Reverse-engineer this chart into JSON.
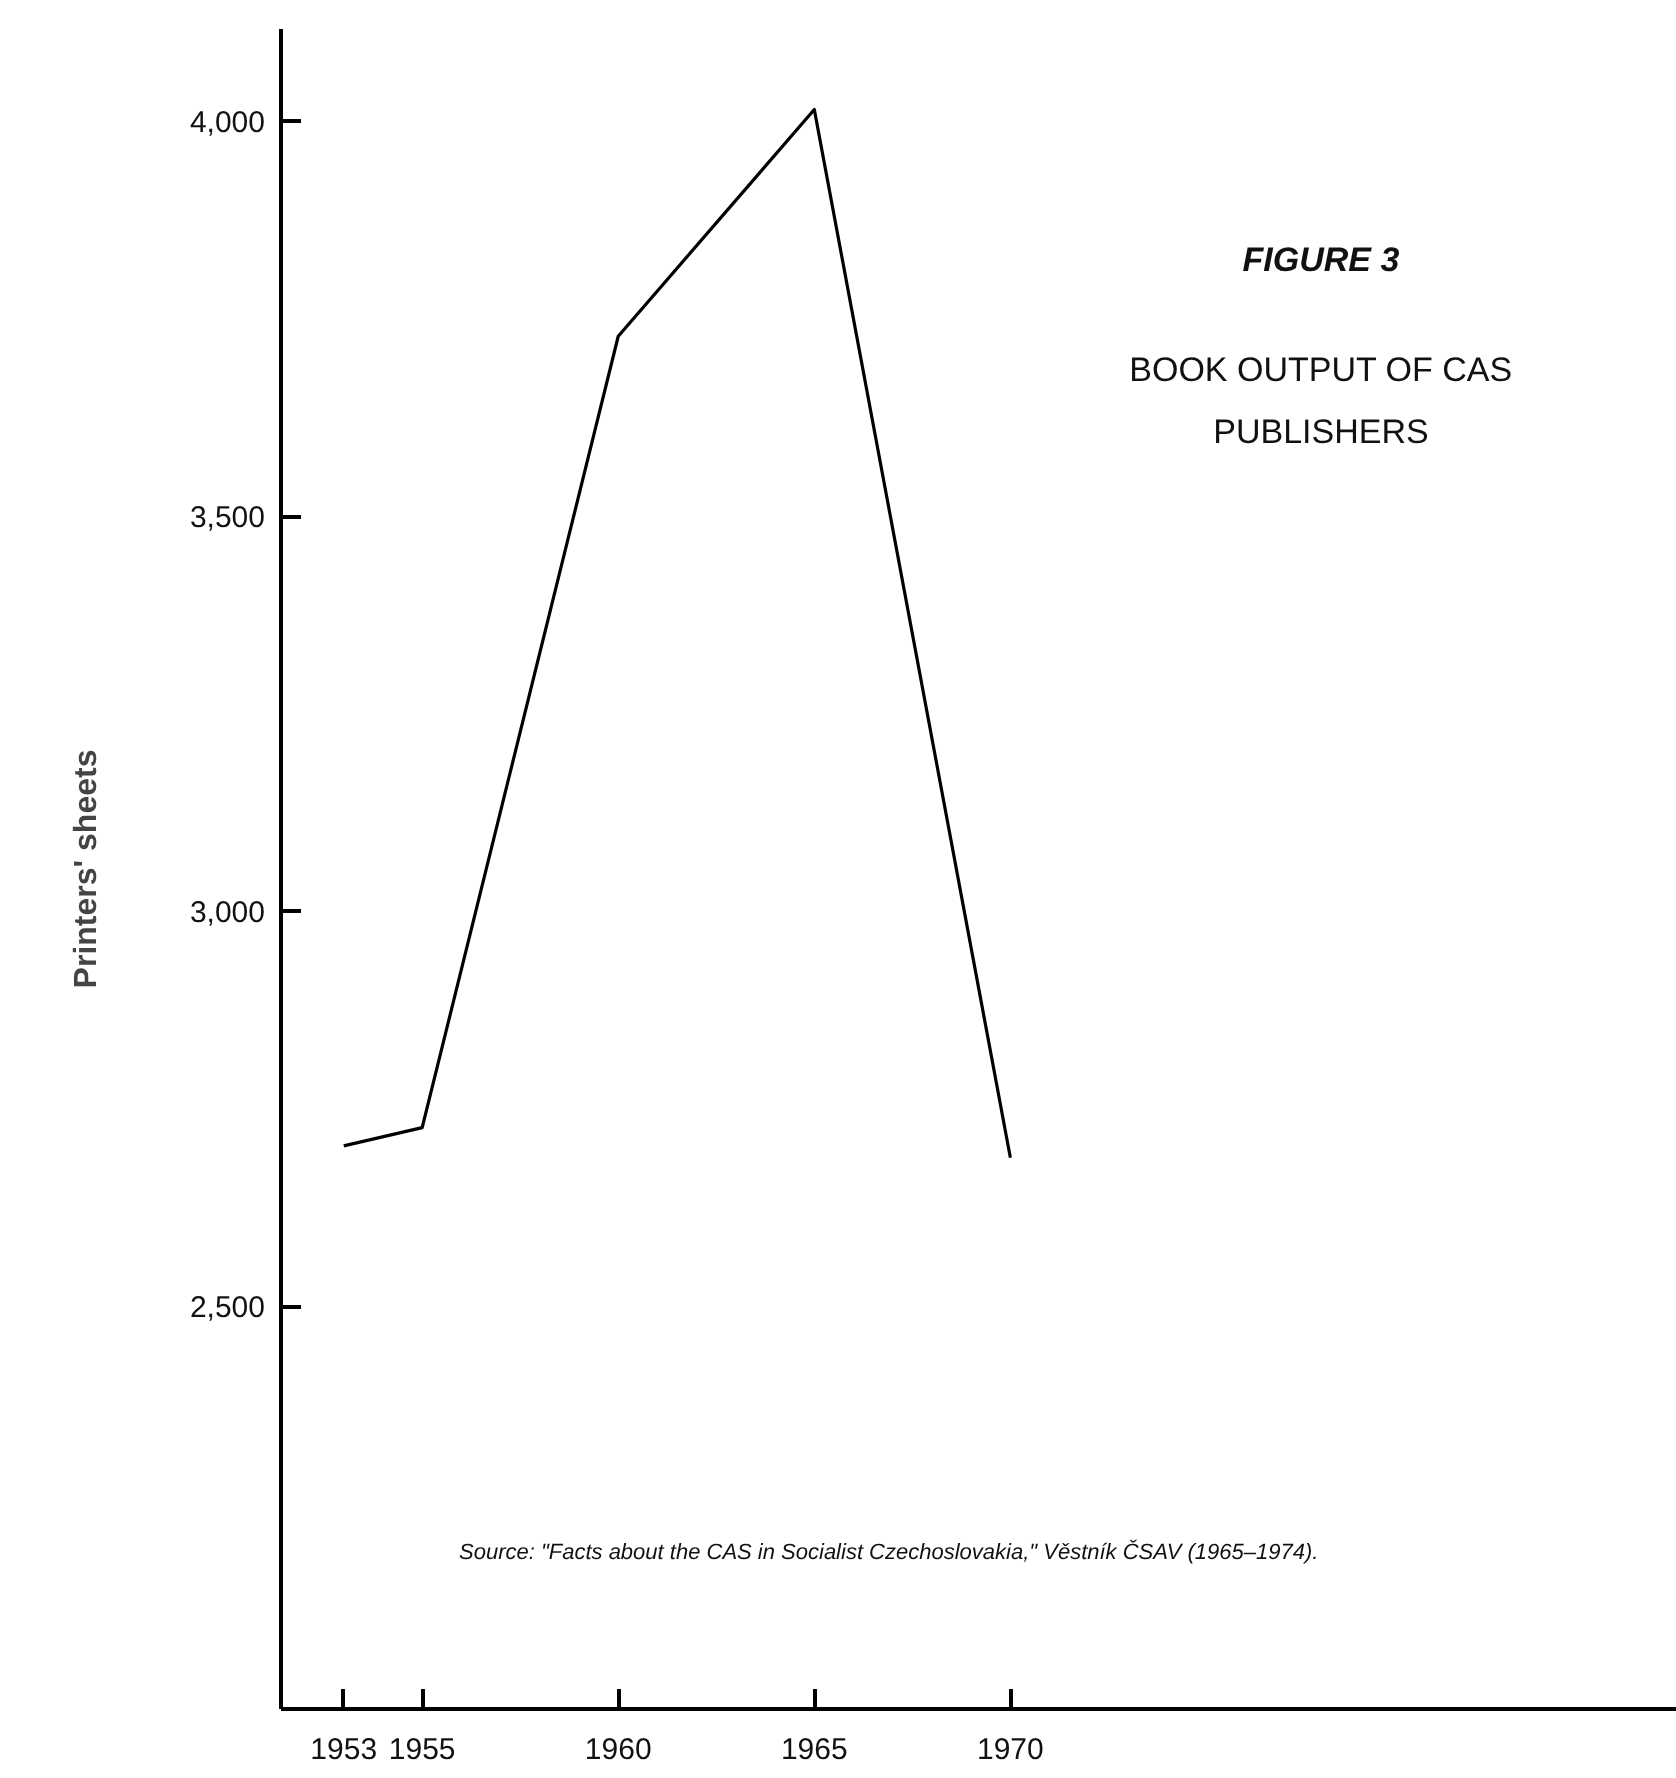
{
  "chart_data": {
    "type": "line",
    "title": "FIGURE 3",
    "subtitle": "BOOK OUTPUT OF CAS\nPUBLISHERS",
    "ylabel": "Printers' sheets",
    "annotations": [
      "Source: \"Facts about the CAS in Socialist Czechoslovakia,\" Věstník ČSAV (1965–1974)."
    ],
    "x": [
      1953,
      1955,
      1960,
      1965,
      1970
    ],
    "series": [
      {
        "color": "#000000",
        "values": [
          2703,
          2726,
          3728,
          4015,
          2688
        ]
      }
    ],
    "xlim": [
      1951.4,
      1987
    ],
    "xticks": [
      1953,
      1955,
      1960,
      1965,
      1970
    ],
    "ylim": [
      1990,
      4117
    ],
    "yticks": [
      {
        "value": 2500,
        "label": "2,500"
      },
      {
        "value": 3000,
        "label": "3,000"
      },
      {
        "value": 3500,
        "label": "3,500"
      },
      {
        "value": 4000,
        "label": "4,000"
      }
    ],
    "line_style": "solid"
  }
}
